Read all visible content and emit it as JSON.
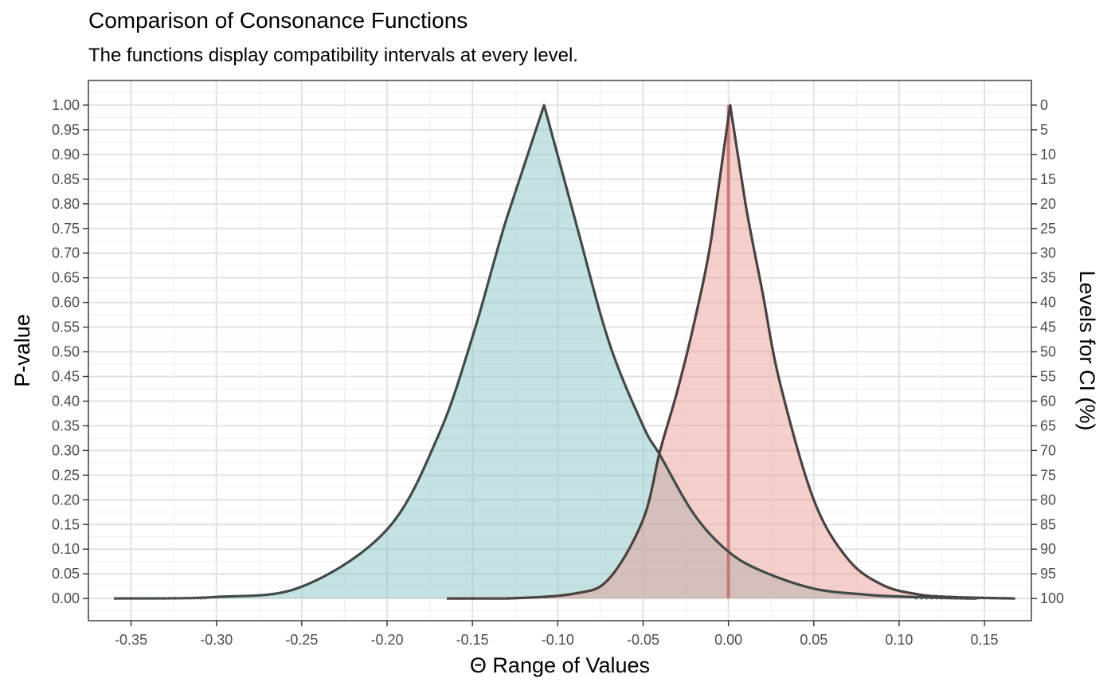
{
  "title": "Comparison of Consonance Functions",
  "subtitle": "The functions display compatibility intervals at every level.",
  "chart_data": {
    "type": "area",
    "title": "Comparison of Consonance Functions",
    "subtitle": "The functions display compatibility intervals at every level.",
    "xlabel": "Θ Range of Values",
    "ylabel": "P-value",
    "y2label": "Levels for CI (%)",
    "xlim": [
      -0.375,
      0.1775
    ],
    "ylim": [
      -0.045,
      1.05
    ],
    "grid": true,
    "legend": "none",
    "x_ticks": [
      -0.35,
      -0.3,
      -0.25,
      -0.2,
      -0.15,
      -0.1,
      -0.05,
      0.0,
      0.05,
      0.1,
      0.15
    ],
    "x_tick_labels": [
      "-0.35",
      "-0.30",
      "-0.25",
      "-0.20",
      "-0.15",
      "-0.10",
      "-0.05",
      "0.00",
      "0.05",
      "0.10",
      "0.15"
    ],
    "y_ticks": [
      0.0,
      0.05,
      0.1,
      0.15,
      0.2,
      0.25,
      0.3,
      0.35,
      0.4,
      0.45,
      0.5,
      0.55,
      0.6,
      0.65,
      0.7,
      0.75,
      0.8,
      0.85,
      0.9,
      0.95,
      1.0
    ],
    "y_tick_labels": [
      "0.00",
      "0.05",
      "0.10",
      "0.15",
      "0.20",
      "0.25",
      "0.30",
      "0.35",
      "0.40",
      "0.45",
      "0.50",
      "0.55",
      "0.60",
      "0.65",
      "0.70",
      "0.75",
      "0.80",
      "0.85",
      "0.90",
      "0.95",
      "1.00"
    ],
    "y2_tick_labels": [
      "100",
      "95",
      "90",
      "85",
      "80",
      "75",
      "70",
      "65",
      "60",
      "55",
      "50",
      "45",
      "40",
      "35",
      "30",
      "25",
      "20",
      "15",
      "10",
      "5",
      "0"
    ],
    "series": [
      {
        "fill": "#7fbfbf",
        "line": "#404a4a",
        "points": [
          [
            -0.36,
            0.0
          ],
          [
            -0.3,
            0.003
          ],
          [
            -0.25,
            0.024
          ],
          [
            -0.2,
            0.14
          ],
          [
            -0.17,
            0.33
          ],
          [
            -0.15,
            0.53
          ],
          [
            -0.13,
            0.77
          ],
          [
            -0.108,
            1.0
          ],
          [
            -0.09,
            0.77
          ],
          [
            -0.07,
            0.52
          ],
          [
            -0.05,
            0.35
          ],
          [
            -0.04,
            0.29
          ],
          [
            -0.02,
            0.17
          ],
          [
            0.0,
            0.095
          ],
          [
            0.02,
            0.055
          ],
          [
            0.05,
            0.02
          ],
          [
            0.08,
            0.008
          ],
          [
            0.1,
            0.004
          ],
          [
            0.14,
            0.0
          ],
          [
            0.145,
            0.0
          ]
        ],
        "min_x": -0.36,
        "max_x": 0.145,
        "dot_xs": [
          -0.358,
          -0.346,
          -0.338,
          -0.333,
          -0.329,
          -0.326,
          -0.323,
          -0.321,
          -0.319,
          -0.317,
          -0.315,
          -0.313,
          -0.311,
          -0.309,
          -0.307,
          0.11,
          0.113,
          0.116,
          0.119,
          0.122,
          0.125,
          0.128,
          0.131,
          0.134,
          0.137,
          0.14,
          0.143
        ]
      },
      {
        "fill": "#e7958b",
        "line": "#4a4040",
        "points": [
          [
            -0.165,
            0.0
          ],
          [
            -0.13,
            0.0
          ],
          [
            -0.09,
            0.01
          ],
          [
            -0.07,
            0.04
          ],
          [
            -0.05,
            0.16
          ],
          [
            -0.04,
            0.3
          ],
          [
            -0.03,
            0.42
          ],
          [
            -0.02,
            0.56
          ],
          [
            -0.01,
            0.73
          ],
          [
            0.001,
            1.0
          ],
          [
            0.01,
            0.8
          ],
          [
            0.02,
            0.62
          ],
          [
            0.03,
            0.44
          ],
          [
            0.05,
            0.2
          ],
          [
            0.07,
            0.08
          ],
          [
            0.09,
            0.028
          ],
          [
            0.11,
            0.009
          ],
          [
            0.13,
            0.003
          ],
          [
            0.168,
            0.0
          ]
        ],
        "min_x": -0.165,
        "max_x": 0.168,
        "dot_xs": [
          -0.163,
          -0.152,
          -0.147,
          -0.144,
          -0.141,
          -0.139,
          -0.137,
          -0.135,
          -0.133,
          -0.131,
          0.132,
          0.135,
          0.138,
          0.141,
          0.144,
          0.147,
          0.15,
          0.154,
          0.159,
          0.167
        ]
      }
    ],
    "vline": {
      "x": 0.0,
      "color": "#c06868"
    }
  }
}
